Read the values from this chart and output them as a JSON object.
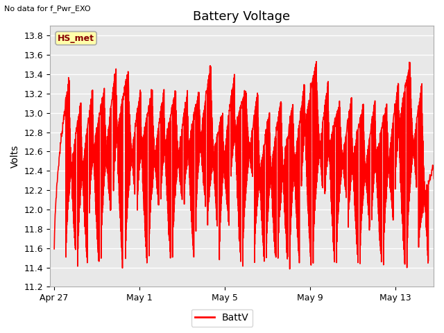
{
  "title": "Battery Voltage",
  "top_left_text": "No data for f_Pwr_EXO",
  "ylabel": "Volts",
  "ylim": [
    11.2,
    13.9
  ],
  "yticks": [
    11.2,
    11.4,
    11.6,
    11.8,
    12.0,
    12.2,
    12.4,
    12.6,
    12.8,
    13.0,
    13.2,
    13.4,
    13.6,
    13.8
  ],
  "xtick_labels": [
    "Apr 27",
    "May 1",
    "May 5",
    "May 9",
    "May 13"
  ],
  "xtick_positions": [
    0,
    4,
    8,
    12,
    16
  ],
  "xlim": [
    -0.2,
    17.8
  ],
  "legend_label": "BattV",
  "line_color": "#ff0000",
  "line_width": 1.2,
  "fig_bg": "#ffffff",
  "plot_bg": "#e8e8e8",
  "annotation_box_color": "#ffffaa",
  "annotation_text": "HS_met",
  "annotation_text_color": "#880000",
  "title_fontsize": 13,
  "label_fontsize": 10,
  "tick_fontsize": 9,
  "grid_color": "#ffffff",
  "grid_lw": 1.0
}
